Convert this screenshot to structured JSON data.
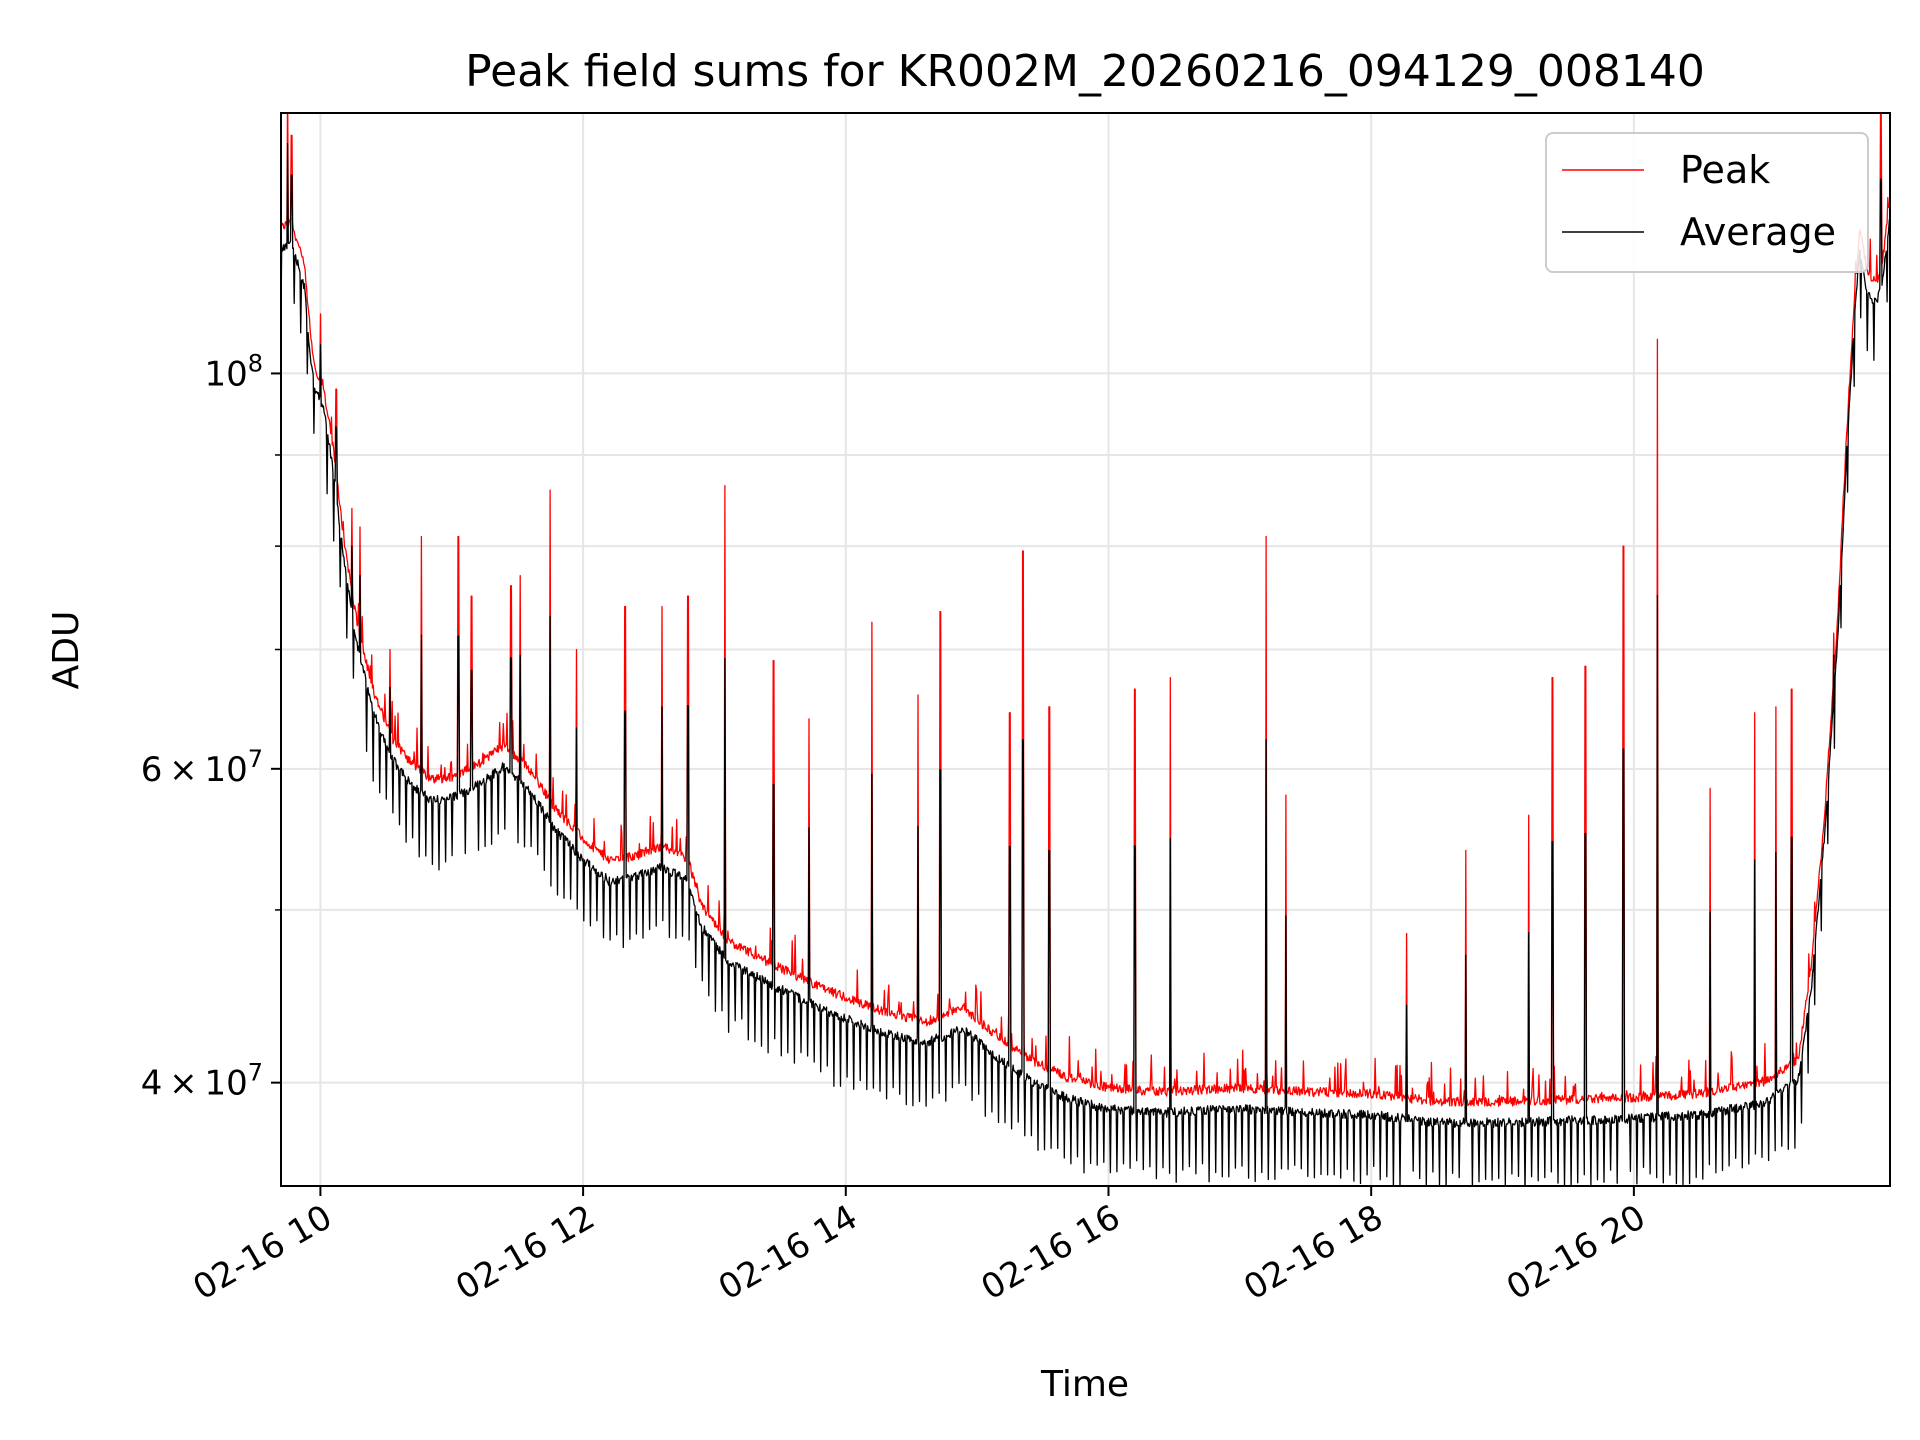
{
  "chart_data": {
    "type": "line",
    "title": "Peak field sums for KR002M_20260216_094129_008140",
    "xlabel": "Time",
    "ylabel": "ADU",
    "yscale": "log",
    "xlim": [
      9.7,
      21.95
    ],
    "ylim": [
      35000000,
      140000000
    ],
    "grid": true,
    "legend_position": "top-right",
    "x_ticks": [
      {
        "value": 10,
        "label": "02-16 10"
      },
      {
        "value": 12,
        "label": "02-16 12"
      },
      {
        "value": 14,
        "label": "02-16 14"
      },
      {
        "value": 16,
        "label": "02-16 16"
      },
      {
        "value": 18,
        "label": "02-16 18"
      },
      {
        "value": 20,
        "label": "02-16 20"
      }
    ],
    "y_major_ticks": [
      {
        "value": 40000000,
        "mantissa": "4",
        "exponent": "7"
      },
      {
        "value": 60000000,
        "mantissa": "6",
        "exponent": "7"
      },
      {
        "value": 100000000,
        "base": "10",
        "exponent": "8"
      }
    ],
    "y_minor_ticks": [
      50000000,
      70000000,
      80000000,
      90000000
    ],
    "times_symbol": "×",
    "baseline": [
      [
        9.7,
        120000000
      ],
      [
        9.78,
        121000000
      ],
      [
        9.88,
        114000000
      ],
      [
        9.92,
        105000000
      ],
      [
        9.96,
        100000000
      ],
      [
        10.02,
        98000000
      ],
      [
        10.1,
        90000000
      ],
      [
        10.18,
        80000000
      ],
      [
        10.28,
        72000000
      ],
      [
        10.4,
        66000000
      ],
      [
        10.55,
        62000000
      ],
      [
        10.7,
        60000000
      ],
      [
        10.85,
        58800000
      ],
      [
        11.0,
        59000000
      ],
      [
        11.2,
        60000000
      ],
      [
        11.4,
        61500000
      ],
      [
        11.6,
        59500000
      ],
      [
        11.8,
        56500000
      ],
      [
        12.0,
        54500000
      ],
      [
        12.2,
        53000000
      ],
      [
        12.4,
        53300000
      ],
      [
        12.6,
        54000000
      ],
      [
        12.8,
        53000000
      ],
      [
        12.9,
        50000000
      ],
      [
        13.1,
        47800000
      ],
      [
        13.4,
        46500000
      ],
      [
        13.8,
        45000000
      ],
      [
        14.2,
        43800000
      ],
      [
        14.6,
        43000000
      ],
      [
        14.9,
        43800000
      ],
      [
        15.1,
        42500000
      ],
      [
        15.4,
        41000000
      ],
      [
        15.7,
        40000000
      ],
      [
        16.0,
        39500000
      ],
      [
        16.4,
        39300000
      ],
      [
        17.0,
        39500000
      ],
      [
        17.5,
        39300000
      ],
      [
        18.0,
        39200000
      ],
      [
        18.5,
        38800000
      ],
      [
        19.0,
        38800000
      ],
      [
        19.5,
        38900000
      ],
      [
        20.0,
        39000000
      ],
      [
        20.5,
        39200000
      ],
      [
        21.0,
        39800000
      ],
      [
        21.25,
        41000000
      ],
      [
        21.35,
        46000000
      ],
      [
        21.45,
        56000000
      ],
      [
        21.55,
        72000000
      ],
      [
        21.62,
        92000000
      ],
      [
        21.68,
        110000000
      ],
      [
        21.72,
        120000000
      ],
      [
        21.78,
        113000000
      ],
      [
        21.85,
        112000000
      ],
      [
        21.9,
        116000000
      ],
      [
        21.95,
        125000000
      ]
    ],
    "peak_spikes": [
      [
        9.75,
        146000000
      ],
      [
        9.78,
        136000000
      ],
      [
        10.0,
        108000000
      ],
      [
        10.12,
        98000000
      ],
      [
        10.24,
        84000000
      ],
      [
        10.3,
        82000000
      ],
      [
        10.53,
        70000000
      ],
      [
        10.77,
        81000000
      ],
      [
        11.05,
        81000000
      ],
      [
        11.15,
        75000000
      ],
      [
        11.45,
        76000000
      ],
      [
        11.52,
        77000000
      ],
      [
        11.75,
        86000000
      ],
      [
        11.95,
        70000000
      ],
      [
        12.32,
        74000000
      ],
      [
        12.6,
        74000000
      ],
      [
        12.8,
        75000000
      ],
      [
        13.08,
        86500000
      ],
      [
        13.45,
        69000000
      ],
      [
        13.72,
        64000000
      ],
      [
        14.2,
        72500000
      ],
      [
        14.55,
        66000000
      ],
      [
        14.72,
        73500000
      ],
      [
        15.25,
        64500000
      ],
      [
        15.35,
        79500000
      ],
      [
        15.55,
        65000000
      ],
      [
        16.2,
        66500000
      ],
      [
        16.47,
        67500000
      ],
      [
        17.2,
        81000000
      ],
      [
        17.35,
        58000000
      ],
      [
        18.27,
        48500000
      ],
      [
        18.72,
        54000000
      ],
      [
        19.2,
        56500000
      ],
      [
        19.38,
        67500000
      ],
      [
        19.63,
        68500000
      ],
      [
        19.92,
        80000000
      ],
      [
        20.18,
        104500000
      ],
      [
        20.58,
        58500000
      ],
      [
        20.92,
        64500000
      ],
      [
        21.08,
        65000000
      ],
      [
        21.2,
        66500000
      ],
      [
        21.52,
        71500000
      ],
      [
        21.88,
        140000000
      ]
    ],
    "series": [
      {
        "name": "Peak",
        "color": "#ff0000"
      },
      {
        "name": "Average",
        "color": "#000000"
      }
    ]
  }
}
